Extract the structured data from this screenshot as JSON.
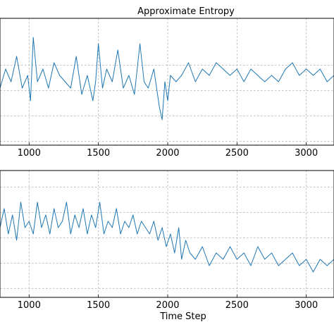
{
  "chart_data": [
    {
      "type": "line",
      "title": "Approximate Entropy",
      "xlabel": "",
      "ylabel": "",
      "xlim": [
        790,
        3200
      ],
      "ylim": [
        0,
        1
      ],
      "grid": true,
      "xticks": [
        1000,
        1500,
        2000,
        2500,
        3000
      ],
      "color": "#1f77b4",
      "series": [
        {
          "x": [
            790,
            830,
            870,
            910,
            950,
            990,
            1010,
            1030,
            1060,
            1100,
            1140,
            1180,
            1220,
            1260,
            1300,
            1340,
            1380,
            1420,
            1460,
            1480,
            1500,
            1530,
            1560,
            1600,
            1640,
            1680,
            1720,
            1760,
            1800,
            1830,
            1860,
            1900,
            1940,
            1960,
            1980,
            2000,
            2020,
            2060,
            2100,
            2150,
            2200,
            2250,
            2300,
            2350,
            2400,
            2450,
            2500,
            2550,
            2600,
            2650,
            2700,
            2750,
            2800,
            2850,
            2900,
            2950,
            3000,
            3050,
            3100,
            3150,
            3200
          ],
          "y": [
            0.45,
            0.6,
            0.5,
            0.7,
            0.45,
            0.55,
            0.35,
            0.85,
            0.5,
            0.6,
            0.45,
            0.65,
            0.55,
            0.5,
            0.45,
            0.7,
            0.4,
            0.55,
            0.35,
            0.5,
            0.8,
            0.45,
            0.6,
            0.5,
            0.75,
            0.45,
            0.55,
            0.4,
            0.8,
            0.5,
            0.45,
            0.6,
            0.3,
            0.2,
            0.5,
            0.35,
            0.55,
            0.5,
            0.55,
            0.65,
            0.5,
            0.6,
            0.55,
            0.65,
            0.6,
            0.55,
            0.6,
            0.5,
            0.6,
            0.55,
            0.5,
            0.55,
            0.5,
            0.6,
            0.65,
            0.55,
            0.6,
            0.55,
            0.6,
            0.5,
            0.55
          ]
        }
      ]
    },
    {
      "type": "line",
      "title": "",
      "xlabel": "Time Step",
      "ylabel": "",
      "xlim": [
        790,
        3200
      ],
      "ylim": [
        0,
        1
      ],
      "grid": true,
      "xticks": [
        1000,
        1500,
        2000,
        2500,
        3000
      ],
      "color": "#1f77b4",
      "series": [
        {
          "x": [
            790,
            820,
            850,
            880,
            910,
            940,
            970,
            1000,
            1030,
            1060,
            1090,
            1120,
            1150,
            1180,
            1210,
            1240,
            1270,
            1300,
            1330,
            1360,
            1390,
            1420,
            1450,
            1480,
            1510,
            1540,
            1570,
            1600,
            1630,
            1660,
            1690,
            1720,
            1750,
            1780,
            1810,
            1840,
            1870,
            1900,
            1930,
            1960,
            1990,
            2020,
            2050,
            2080,
            2100,
            2130,
            2160,
            2200,
            2250,
            2300,
            2350,
            2400,
            2450,
            2500,
            2550,
            2600,
            2650,
            2700,
            2750,
            2800,
            2850,
            2900,
            2950,
            3000,
            3050,
            3100,
            3150,
            3200
          ],
          "y": [
            0.55,
            0.7,
            0.5,
            0.65,
            0.45,
            0.75,
            0.55,
            0.6,
            0.5,
            0.75,
            0.55,
            0.65,
            0.5,
            0.7,
            0.55,
            0.6,
            0.75,
            0.5,
            0.65,
            0.55,
            0.7,
            0.5,
            0.65,
            0.55,
            0.75,
            0.5,
            0.6,
            0.55,
            0.7,
            0.5,
            0.6,
            0.55,
            0.65,
            0.5,
            0.6,
            0.55,
            0.5,
            0.6,
            0.45,
            0.55,
            0.4,
            0.5,
            0.35,
            0.55,
            0.3,
            0.45,
            0.35,
            0.3,
            0.4,
            0.25,
            0.35,
            0.3,
            0.4,
            0.3,
            0.35,
            0.25,
            0.4,
            0.3,
            0.35,
            0.25,
            0.3,
            0.35,
            0.25,
            0.3,
            0.2,
            0.3,
            0.25,
            0.3
          ]
        }
      ]
    }
  ]
}
